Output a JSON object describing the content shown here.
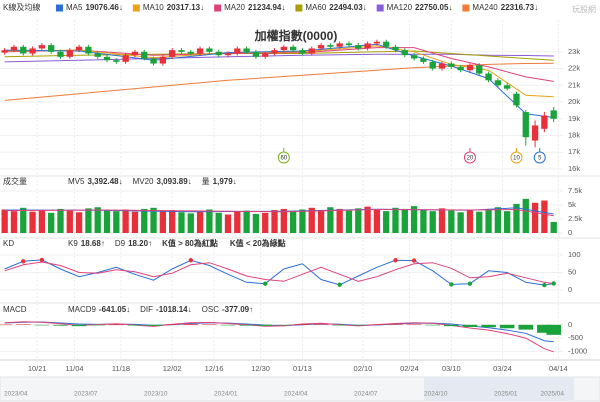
{
  "watermark": "玩股網",
  "chart_data": [
    {
      "type": "candlestick",
      "title": "加權指數(0000)",
      "label": "K線及均線",
      "up_color": "#e8303a",
      "down_color": "#1aa33a",
      "xlim": [
        -0.5,
        60
      ],
      "ylim": [
        16000,
        24900
      ],
      "yticks": [
        {
          "value": 16000,
          "label": "16k"
        },
        {
          "value": 17000,
          "label": "17k"
        },
        {
          "value": 18000,
          "label": "18k"
        },
        {
          "value": 19000,
          "label": "19k"
        },
        {
          "value": 20000,
          "label": "20k"
        },
        {
          "value": 21000,
          "label": "21k"
        },
        {
          "value": 22000,
          "label": "22k"
        },
        {
          "value": 23000,
          "label": "23k"
        }
      ],
      "open": [
        22950,
        23100,
        23300,
        22900,
        23200,
        23400,
        23000,
        22700,
        23100,
        23300,
        22900,
        22700,
        22500,
        22400,
        22800,
        23000,
        22600,
        22300,
        22700,
        23100,
        23000,
        22900,
        23200,
        23000,
        22800,
        22900,
        23200,
        23000,
        22700,
        22900,
        23100,
        23300,
        23100,
        22900,
        23200,
        23400,
        23300,
        23500,
        23400,
        23200,
        23500,
        23600,
        23300,
        23100,
        22800,
        22600,
        22400,
        22000,
        22300,
        22100,
        21900,
        22200,
        21700,
        21300,
        21000,
        20500,
        19400,
        17700,
        18400,
        19500
      ],
      "high": [
        23220,
        23420,
        23420,
        23320,
        23520,
        23520,
        23120,
        23220,
        23420,
        23420,
        23020,
        22820,
        22620,
        22920,
        23120,
        23120,
        22720,
        22820,
        23220,
        23220,
        23120,
        23320,
        23320,
        23120,
        23020,
        23320,
        23320,
        23120,
        23020,
        23220,
        23420,
        23420,
        23220,
        23320,
        23520,
        23520,
        23620,
        23620,
        23520,
        23620,
        23720,
        23720,
        23420,
        23220,
        22920,
        22720,
        22520,
        22420,
        22420,
        22220,
        22320,
        22320,
        21820,
        21420,
        21120,
        20620,
        19520,
        18900,
        19400,
        19700
      ],
      "low": [
        22830,
        22980,
        22780,
        22780,
        23080,
        22880,
        22580,
        22580,
        22980,
        22780,
        22580,
        22380,
        22280,
        22280,
        22680,
        22480,
        22180,
        22180,
        22580,
        22880,
        22780,
        22780,
        22880,
        22680,
        22680,
        22780,
        22880,
        22580,
        22580,
        22780,
        22980,
        22980,
        22780,
        22780,
        23080,
        23180,
        23180,
        23280,
        23080,
        23080,
        23380,
        23180,
        22980,
        22680,
        22480,
        22280,
        21880,
        21880,
        21980,
        21780,
        21780,
        21580,
        21180,
        20880,
        20680,
        19680,
        17400,
        17300,
        18200,
        18800
      ],
      "close": [
        23100,
        23300,
        22900,
        23200,
        23400,
        23000,
        22700,
        23100,
        23300,
        22900,
        22700,
        22500,
        22400,
        22800,
        23000,
        22600,
        22300,
        22700,
        23100,
        23000,
        22900,
        23200,
        23000,
        22800,
        22900,
        23200,
        23000,
        22700,
        22900,
        23100,
        23300,
        23100,
        22900,
        23200,
        23400,
        23300,
        23500,
        23400,
        23200,
        23500,
        23600,
        23300,
        23100,
        22800,
        22600,
        22400,
        22000,
        22300,
        22100,
        21900,
        22200,
        21700,
        21300,
        21000,
        20800,
        19800,
        17900,
        18600,
        19200,
        19000
      ],
      "series": [
        {
          "name": "MA5",
          "color": "#2b6fd6",
          "value_label": "19076.46↓",
          "x": [
            0,
            8,
            16,
            24,
            32,
            40,
            44,
            48,
            52,
            56,
            59
          ],
          "values": [
            23100,
            23050,
            22500,
            22950,
            23050,
            23450,
            22750,
            22150,
            21400,
            19300,
            19076.46
          ]
        },
        {
          "name": "MA10",
          "color": "#e8a317",
          "value_label": "20317.13↓",
          "x": [
            0,
            8,
            16,
            24,
            32,
            40,
            44,
            48,
            52,
            56,
            59
          ],
          "values": [
            23050,
            23100,
            22650,
            22950,
            23000,
            23350,
            23000,
            22250,
            21900,
            20400,
            20317.13
          ]
        },
        {
          "name": "MA20",
          "color": "#e0417a",
          "value_label": "21234.94↓",
          "x": [
            0,
            8,
            16,
            24,
            32,
            40,
            44,
            48,
            52,
            56,
            59
          ],
          "values": [
            23000,
            23100,
            22800,
            22900,
            22950,
            23250,
            23250,
            22600,
            22100,
            21500,
            21234.94
          ]
        },
        {
          "name": "MA60",
          "color": "#a8a000",
          "value_label": "22494.03↓",
          "x": [
            0,
            8,
            16,
            24,
            32,
            40,
            44,
            48,
            52,
            56,
            59
          ],
          "values": [
            22700,
            22800,
            22850,
            22900,
            22900,
            23000,
            23050,
            22900,
            22750,
            22600,
            22494.03
          ]
        },
        {
          "name": "MA120",
          "color": "#8a5cd6",
          "value_label": "22750.05↓",
          "x": [
            0,
            8,
            16,
            24,
            32,
            40,
            44,
            48,
            52,
            56,
            59
          ],
          "values": [
            22400,
            22500,
            22600,
            22700,
            22800,
            22850,
            22850,
            22850,
            22800,
            22780,
            22750.05
          ]
        },
        {
          "name": "MA240",
          "color": "#f07a3a",
          "value_label": "22316.73↓",
          "x": [
            0,
            8,
            16,
            24,
            32,
            40,
            44,
            48,
            52,
            56,
            59
          ],
          "values": [
            20100,
            20500,
            20900,
            21300,
            21600,
            21900,
            22050,
            22150,
            22250,
            22300,
            22316.73
          ]
        }
      ],
      "markers": [
        {
          "label": "60",
          "x": 30,
          "color": "#7ab317"
        },
        {
          "label": "20",
          "x": 50,
          "color": "#e0417a"
        },
        {
          "label": "10",
          "x": 55,
          "color": "#e8a317"
        },
        {
          "label": "5",
          "x": 57.5,
          "color": "#2b6fd6"
        }
      ]
    },
    {
      "type": "bar",
      "label": "成交量",
      "ylim": [
        0,
        7500
      ],
      "yticks": [
        0,
        {
          "value": 2500,
          "label": "2.5k"
        },
        {
          "value": 5000,
          "label": "5k"
        },
        {
          "value": 7500,
          "label": "7.5k"
        }
      ],
      "values": [
        4200,
        3900,
        4500,
        3800,
        4100,
        3600,
        4300,
        4000,
        3700,
        4400,
        4600,
        4100,
        3900,
        4200,
        3800,
        4300,
        4500,
        3900,
        4100,
        3700,
        3500,
        3900,
        4200,
        3600,
        3300,
        3800,
        4000,
        3400,
        3600,
        4100,
        4300,
        3900,
        4200,
        4500,
        4100,
        4600,
        4300,
        4000,
        4400,
        4700,
        4200,
        3900,
        4500,
        4300,
        4800,
        4100,
        3900,
        4400,
        4000,
        3700,
        4200,
        3800,
        4300,
        4600,
        3900,
        5200,
        6100,
        5400,
        5800,
        1979
      ],
      "series": [
        {
          "name": "MV5",
          "color": "#2b6fd6",
          "value_label": "3,392.48↓",
          "x": [
            0,
            10,
            20,
            30,
            40,
            50,
            55,
            59
          ],
          "values": [
            4100,
            4050,
            3800,
            3900,
            4250,
            4050,
            4500,
            3392.48
          ]
        },
        {
          "name": "MV20",
          "color": "#e0417a",
          "value_label": "3,093.89↓",
          "x": [
            0,
            10,
            20,
            30,
            40,
            50,
            55,
            59
          ],
          "values": [
            4000,
            4100,
            3950,
            3800,
            4200,
            4100,
            4200,
            3093.89
          ]
        }
      ],
      "volume_legend": {
        "name": "量",
        "label": "1,979↓"
      }
    },
    {
      "type": "line",
      "label": "KD",
      "ylim": [
        0,
        100
      ],
      "yticks": [
        0,
        50,
        100
      ],
      "x": [
        0,
        2,
        4,
        6,
        8,
        10,
        12,
        14,
        16,
        18,
        20,
        22,
        24,
        26,
        28,
        30,
        32,
        34,
        36,
        38,
        40,
        42,
        44,
        46,
        48,
        50,
        52,
        54,
        56,
        58,
        59
      ],
      "series": [
        {
          "name": "K9",
          "color": "#2b6fd6",
          "value_label": "18.68↑",
          "values": [
            60,
            82,
            86,
            60,
            38,
            50,
            65,
            45,
            28,
            60,
            85,
            70,
            45,
            22,
            18,
            60,
            75,
            30,
            15,
            40,
            65,
            85,
            84,
            55,
            16,
            18,
            55,
            50,
            22,
            14,
            18.68
          ]
        },
        {
          "name": "D9",
          "color": "#e0417a",
          "value_label": "18.20↑",
          "values": [
            55,
            72,
            80,
            70,
            50,
            48,
            58,
            52,
            38,
            48,
            72,
            78,
            60,
            40,
            30,
            25,
            45,
            65,
            45,
            25,
            38,
            58,
            75,
            78,
            62,
            35,
            38,
            48,
            35,
            22,
            18.2
          ]
        }
      ],
      "notes": [
        "K值 > 80為紅點",
        "K值 < 20為綠點"
      ],
      "red_above": 80,
      "green_below": 20,
      "dot_colors": [
        "#e8303a",
        "#1aa33a"
      ]
    },
    {
      "type": "macd",
      "label": "MACD",
      "ylim": [
        -1100,
        220
      ],
      "yticks": [
        0,
        -500,
        -1000
      ],
      "x": [
        0,
        2,
        4,
        6,
        8,
        10,
        12,
        14,
        16,
        18,
        20,
        22,
        24,
        26,
        28,
        30,
        32,
        34,
        36,
        38,
        40,
        42,
        44,
        46,
        48,
        50,
        52,
        54,
        56,
        58,
        59
      ],
      "series": [
        {
          "name": "MACD9",
          "color": "#2b6fd6",
          "value_label": "-641.05↓",
          "values": [
            70,
            100,
            105,
            70,
            30,
            15,
            30,
            15,
            -20,
            0,
            50,
            75,
            65,
            30,
            -10,
            -30,
            0,
            40,
            20,
            -20,
            -5,
            30,
            60,
            65,
            30,
            -40,
            -110,
            -200,
            -320,
            -600,
            -641.05
          ]
        },
        {
          "name": "DIF",
          "color": "#e0417a",
          "value_label": "-1018.14↓",
          "values": [
            80,
            120,
            100,
            40,
            -20,
            10,
            40,
            -10,
            -60,
            20,
            80,
            90,
            50,
            0,
            -50,
            -40,
            30,
            60,
            0,
            -40,
            10,
            50,
            80,
            60,
            -20,
            -120,
            -200,
            -330,
            -500,
            -900,
            -1018.14
          ]
        },
        {
          "name": "OSC",
          "color": "#333333",
          "bar": true,
          "up_color": "#e8303a",
          "down_color": "#1aa33a",
          "value_label": "-377.09↑",
          "values": [
            10,
            20,
            -5,
            -30,
            -50,
            -5,
            10,
            -25,
            -40,
            20,
            30,
            15,
            -15,
            -30,
            -40,
            -10,
            30,
            20,
            -20,
            -20,
            15,
            20,
            20,
            -5,
            -50,
            -80,
            -90,
            -130,
            -180,
            -300,
            -377.09
          ]
        }
      ],
      "xticks": [
        {
          "value": 3.5,
          "label": "10/21"
        },
        {
          "value": 7.5,
          "label": "11/04"
        },
        {
          "value": 12.5,
          "label": "11/18"
        },
        {
          "value": 18,
          "label": "12/02"
        },
        {
          "value": 22.5,
          "label": "12/16"
        },
        {
          "value": 27.5,
          "label": "12/30"
        },
        {
          "value": 32,
          "label": "01/13"
        },
        {
          "value": 38.5,
          "label": "02/10"
        },
        {
          "value": 43.5,
          "label": "02/24"
        },
        {
          "value": 48,
          "label": "03/10"
        },
        {
          "value": 53.5,
          "label": "03/24"
        },
        {
          "value": 59.5,
          "label": "04/14"
        }
      ]
    }
  ],
  "navigator": {
    "labels": [
      "2023/04",
      "2023/07",
      "2023/10",
      "2024/01",
      "2024/04",
      "2024/07",
      "2024/10",
      "2025/01",
      "2025/04"
    ]
  }
}
